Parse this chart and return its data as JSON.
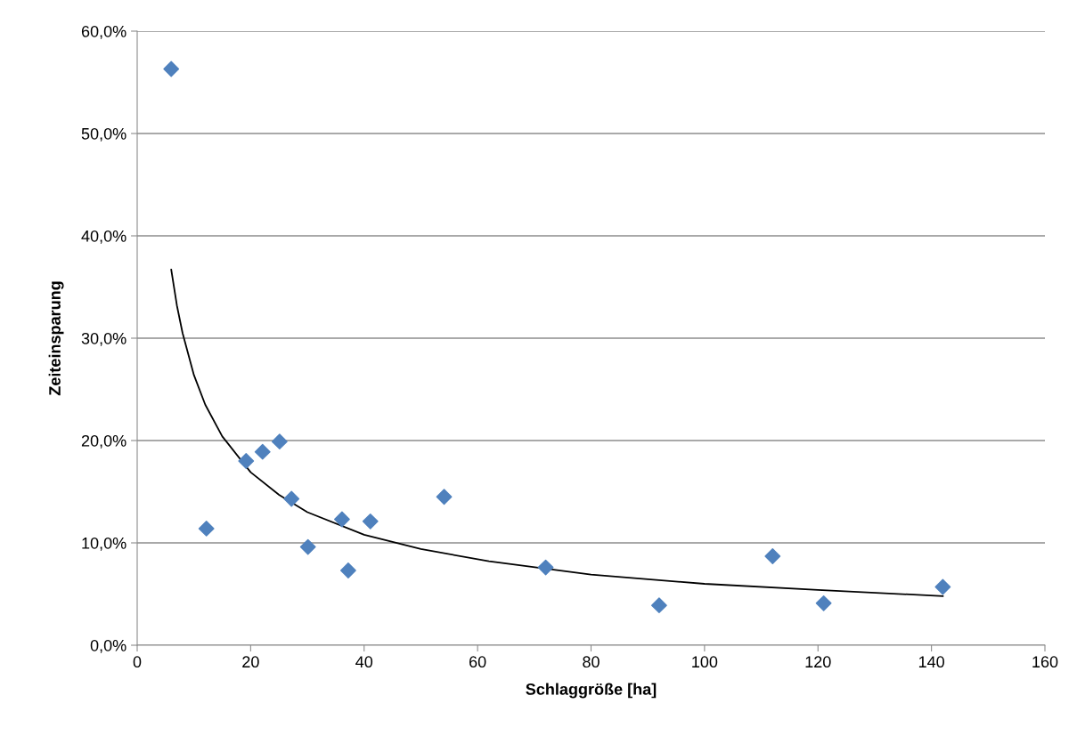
{
  "chart_data": {
    "type": "scatter",
    "xlabel": "Schlaggröße [ha]",
    "ylabel": "Zeiteinsparung",
    "series": [
      {
        "color": "#4f81bd",
        "x": [
          6,
          12.2,
          19.2,
          22.1,
          25.1,
          27.2,
          30.1,
          36.1,
          37.2,
          41.1,
          54.1,
          72,
          92,
          112,
          121,
          142
        ],
        "values": [
          56.3,
          11.4,
          18,
          18.9,
          19.9,
          14.3,
          9.6,
          12.3,
          7.3,
          12.1,
          14.5,
          7.6,
          3.9,
          8.7,
          4.1,
          5.7
        ],
        "marker": "diamond"
      },
      {
        "type": "line",
        "color": "#000000",
        "x": [
          6,
          7,
          8,
          10,
          12,
          15,
          20,
          25,
          30,
          40,
          50,
          62,
          80,
          100,
          120,
          142
        ],
        "values": [
          36.7,
          33.2,
          30.5,
          26.4,
          23.5,
          20.4,
          16.9,
          14.7,
          13,
          10.8,
          9.4,
          8.2,
          6.9,
          6,
          5.4,
          4.8
        ],
        "marker": "none",
        "line_style": "solid"
      }
    ],
    "xlim": [
      0,
      160
    ],
    "xticks": [
      0,
      20,
      40,
      60,
      80,
      100,
      120,
      140,
      160
    ],
    "ylim": [
      0,
      60
    ],
    "yticks": [
      {
        "value": 0,
        "label": "0,0%"
      },
      {
        "value": 10,
        "label": "10,0%"
      },
      {
        "value": 20,
        "label": "20,0%"
      },
      {
        "value": 30,
        "label": "30,0%"
      },
      {
        "value": 40,
        "label": "40,0%"
      },
      {
        "value": 50,
        "label": "50,0%"
      },
      {
        "value": 60,
        "label": "60,0%"
      }
    ],
    "grid": "y",
    "legend": false
  }
}
